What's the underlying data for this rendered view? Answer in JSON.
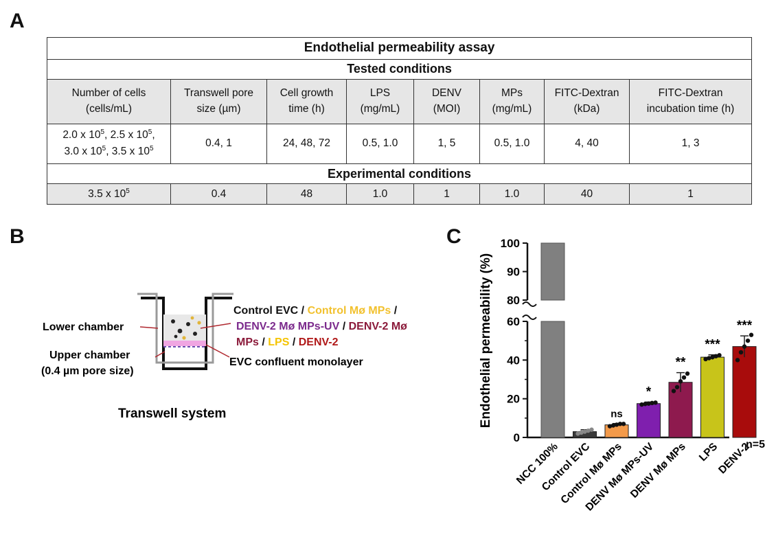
{
  "panels": {
    "a": "A",
    "b": "B",
    "c": "C"
  },
  "table": {
    "title": "Endothelial permeability assay",
    "tested_heading": "Tested conditions",
    "experimental_heading": "Experimental conditions",
    "columns": [
      {
        "line1": "Number of cells",
        "line2": "(cells/mL)"
      },
      {
        "line1": "Transwell pore",
        "line2": "size (µm)"
      },
      {
        "line1": "Cell growth",
        "line2": "time (h)"
      },
      {
        "line1": "LPS",
        "line2": "(mg/mL)"
      },
      {
        "line1": "DENV",
        "line2": "(MOI)"
      },
      {
        "line1": "MPs",
        "line2": "(mg/mL)"
      },
      {
        "line1": "FITC-Dextran",
        "line2": "(kDa)"
      },
      {
        "line1": "FITC-Dextran",
        "line2": "incubation time (h)"
      }
    ],
    "tested": {
      "cells_1a": "2.0 x 10",
      "cells_1b": ", 2.5 x 10",
      "cells_1c": ",",
      "cells_2a": "3.0 x 10",
      "cells_2b": ", 3.5 x 10",
      "exp5": "5",
      "pore": "0.4, 1",
      "growth": "24, 48, 72",
      "lps": "0.5, 1.0",
      "denv": "1, 5",
      "mps": "0.5, 1.0",
      "fitc_kda": "4, 40",
      "fitc_time": "1, 3"
    },
    "experimental": {
      "cells": "3.5 x 10",
      "pore": "0.4",
      "growth": "48",
      "lps": "1.0",
      "denv": "1",
      "mps": "1.0",
      "fitc_kda": "40",
      "fitc_time": "1"
    }
  },
  "diagram": {
    "caption": "Transwell system",
    "lower_chamber": "Lower chamber",
    "upper_chamber": "Upper chamber",
    "pore_size": "(0.4 µm pore size)",
    "monolayer": "EVC confluent monolayer",
    "treatments": {
      "t1": "Control EVC",
      "s1": " / ",
      "t2": "Control Mø MPs",
      "s2": " /",
      "t3": "DENV-2 Mø MPs-UV",
      "s3": " / ",
      "t4": "DENV-2 Mø",
      "t5": "MPs",
      "s4": " / ",
      "t6": "LPS",
      "s5": " / ",
      "t7": "DENV-2"
    },
    "colors": {
      "black": "#111111",
      "yellow": "#F2C12E",
      "purple": "#7B2A8C",
      "maroon": "#8B1A3A",
      "lps_yellow": "#F5C400",
      "red": "#B01818"
    }
  },
  "chart_data": {
    "type": "bar",
    "ylabel": "Endothelial  permeability  (%)",
    "y_upper_ticks": [
      "100",
      "90",
      "80"
    ],
    "y_lower_ticks": [
      "60",
      "40",
      "20",
      "0"
    ],
    "ylim_lower": [
      0,
      60
    ],
    "ylim_upper": [
      80,
      100
    ],
    "broken_axis": true,
    "n_label": "n=5",
    "categories": [
      "NCC 100%",
      "Control EVC",
      "Control Mø MPs",
      "DENV Mø MPs-UV",
      "DENV Mø MPs",
      "LPS",
      "DENV-2"
    ],
    "values": [
      100,
      3,
      6.5,
      17.5,
      28.5,
      41.5,
      47
    ],
    "sd": [
      0,
      1,
      0.7,
      0.8,
      5,
      1.2,
      5.5
    ],
    "points": [
      [],
      [
        2.0,
        2.5,
        3.0,
        3.5,
        4.0
      ],
      [
        5.8,
        6.2,
        6.6,
        7.0,
        7.0
      ],
      [
        17.0,
        17.3,
        17.5,
        17.8,
        18.0
      ],
      [
        24,
        26,
        29,
        31,
        33
      ],
      [
        40.5,
        41,
        41.5,
        42,
        42.5
      ],
      [
        40,
        44,
        47,
        50,
        53
      ]
    ],
    "significance": [
      "",
      "",
      "ns",
      "*",
      "**",
      "***",
      "***"
    ],
    "bar_colors": [
      "#808080",
      "#3a3a3a",
      "#F39A4A",
      "#7F1FAE",
      "#8E1A4E",
      "#C8C41A",
      "#A80C0C"
    ]
  }
}
